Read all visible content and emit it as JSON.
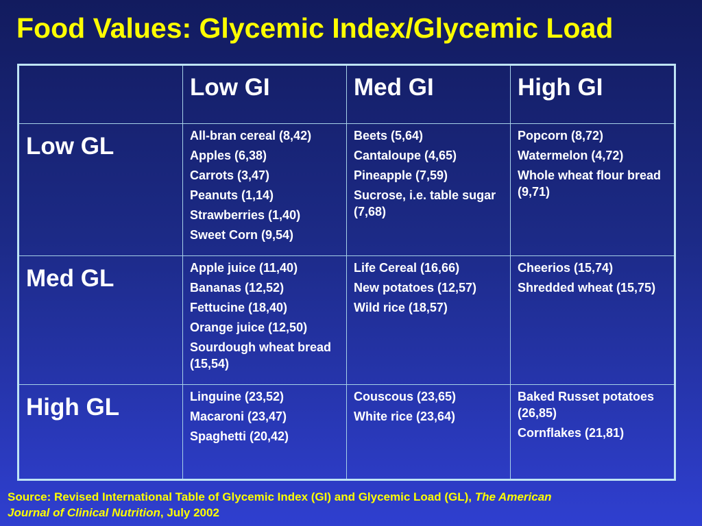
{
  "title": "Food Values: Glycemic Index/Glycemic Load",
  "table": {
    "corner": "",
    "column_headers": [
      "Low GI",
      "Med GI",
      "High GI"
    ],
    "rows": [
      {
        "header": "Low GL",
        "cells": [
          [
            "All-bran cereal (8,42)",
            "Apples (6,38)",
            "Carrots (3,47)",
            "Peanuts (1,14)",
            "Strawberries (1,40)",
            "Sweet Corn (9,54)"
          ],
          [
            "Beets (5,64)",
            "Cantaloupe (4,65)",
            "Pineapple (7,59)",
            "Sucrose, i.e. table sugar (7,68)"
          ],
          [
            "Popcorn (8,72)",
            "Watermelon (4,72)",
            "Whole wheat flour bread (9,71)"
          ]
        ]
      },
      {
        "header": "Med GL",
        "cells": [
          [
            "Apple juice (11,40)",
            "Bananas (12,52)",
            "Fettucine (18,40)",
            "Orange juice (12,50)",
            "Sourdough wheat bread (15,54)"
          ],
          [
            "Life Cereal (16,66)",
            "New potatoes (12,57)",
            "Wild rice (18,57)"
          ],
          [
            "Cheerios (15,74)",
            "Shredded wheat (15,75)"
          ]
        ]
      },
      {
        "header": "High GL",
        "cells": [
          [
            "Linguine (23,52)",
            "Macaroni (23,47)",
            "Spaghetti (20,42)"
          ],
          [
            "Couscous (23,65)",
            "White rice (23,64)"
          ],
          [
            "Baked Russet potatoes (26,85)",
            "Cornflakes (21,81)"
          ]
        ]
      }
    ]
  },
  "source": {
    "prefix": "Source:  Revised International Table of Glycemic Index (GI) and Glycemic Load (GL), ",
    "journal": "The American Journal of Clinical Nutrition",
    "suffix": ", July 2002"
  },
  "colors": {
    "title": "#ffff00",
    "text": "#ffffff",
    "border": "#bfe4f4",
    "background_top": "#121b5e",
    "background_bottom": "#2f3fd0"
  }
}
